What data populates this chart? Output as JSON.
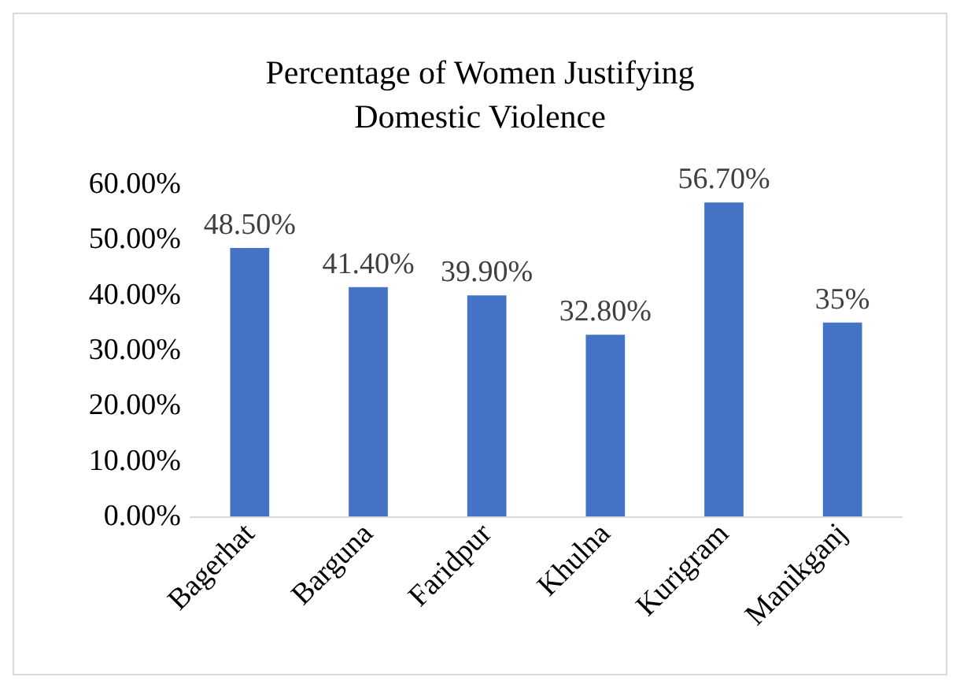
{
  "chart_data": {
    "type": "bar",
    "title": "Percentage of Women Justifying\nDomestic Violence",
    "categories": [
      "Bagerhat",
      "Barguna",
      "Faridpur",
      "Khulna",
      "Kurigram",
      "Manikganj"
    ],
    "values": [
      48.5,
      41.4,
      39.9,
      32.8,
      56.7,
      35
    ],
    "value_labels": [
      "48.50%",
      "41.40%",
      "39.90%",
      "32.80%",
      "56.70%",
      "35%"
    ],
    "color": "#4472c4",
    "ylim": [
      0,
      60
    ],
    "yticks": [
      {
        "value": 0,
        "label": "0.00%"
      },
      {
        "value": 10,
        "label": "10.00%"
      },
      {
        "value": 20,
        "label": "20.00%"
      },
      {
        "value": 30,
        "label": "30.00%"
      },
      {
        "value": 40,
        "label": "40.00%"
      },
      {
        "value": 50,
        "label": "50.00%"
      },
      {
        "value": 60,
        "label": "60.00%"
      }
    ],
    "grid": false
  }
}
